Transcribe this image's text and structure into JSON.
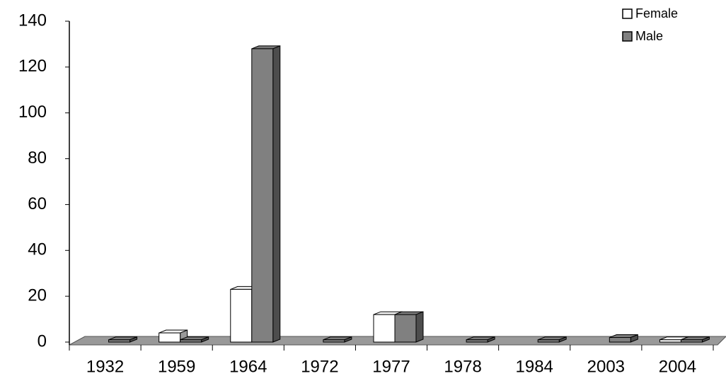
{
  "chart_data": {
    "type": "bar3d",
    "categories": [
      "1932",
      "1959",
      "1964",
      "1972",
      "1977",
      "1978",
      "1984",
      "2003",
      "2004"
    ],
    "series": [
      {
        "name": "Female",
        "color": "#ffffff",
        "values": [
          0,
          4,
          23,
          0,
          12,
          0,
          0,
          0,
          1
        ]
      },
      {
        "name": "Male",
        "color": "#808080",
        "values": [
          1,
          1,
          128,
          1,
          12,
          1,
          1,
          2,
          1
        ]
      }
    ],
    "ylim": [
      0,
      140
    ],
    "yticks": [
      0,
      20,
      40,
      60,
      80,
      100,
      120,
      140
    ],
    "legend": "top-right"
  }
}
